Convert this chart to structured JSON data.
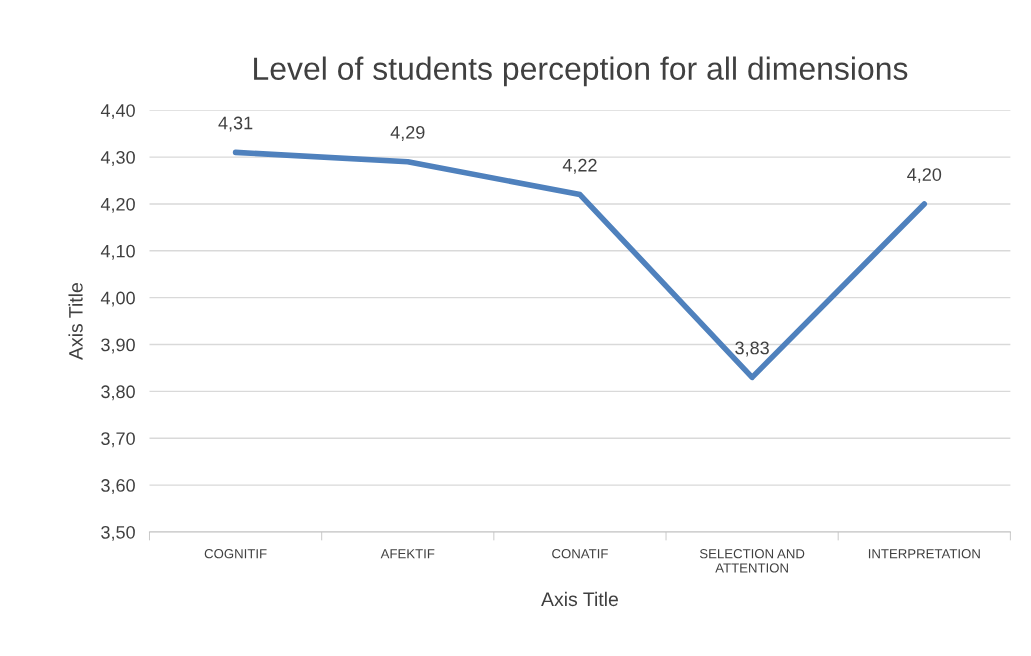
{
  "chart_data": {
    "type": "line",
    "title": "Level of students perception for all dimensions",
    "xlabel": "Axis Title",
    "ylabel": "Axis Title",
    "categories": [
      "COGNITIF",
      "AFEKTIF",
      "CONATIF",
      "SELECTION AND\nATTENTION",
      "INTERPRETATION"
    ],
    "series": [
      {
        "color": "#4f81bd",
        "values": [
          4.31,
          4.29,
          4.22,
          3.83,
          4.2
        ],
        "value_labels": [
          "4,31",
          "4,29",
          "4,22",
          "3,83",
          "4,20"
        ]
      }
    ],
    "ylim": [
      3.5,
      4.4
    ],
    "yticks": [
      {
        "value": 3.5,
        "label": "3,50"
      },
      {
        "value": 3.6,
        "label": "3,60"
      },
      {
        "value": 3.7,
        "label": "3,70"
      },
      {
        "value": 3.8,
        "label": "3,80"
      },
      {
        "value": 3.9,
        "label": "3,90"
      },
      {
        "value": 4.0,
        "label": "4,00"
      },
      {
        "value": 4.1,
        "label": "4,10"
      },
      {
        "value": 4.2,
        "label": "4,20"
      },
      {
        "value": 4.3,
        "label": "4,30"
      },
      {
        "value": 4.4,
        "label": "4,40"
      }
    ],
    "grid": "y",
    "legend": false,
    "marker": "none",
    "line_style": "solid"
  }
}
